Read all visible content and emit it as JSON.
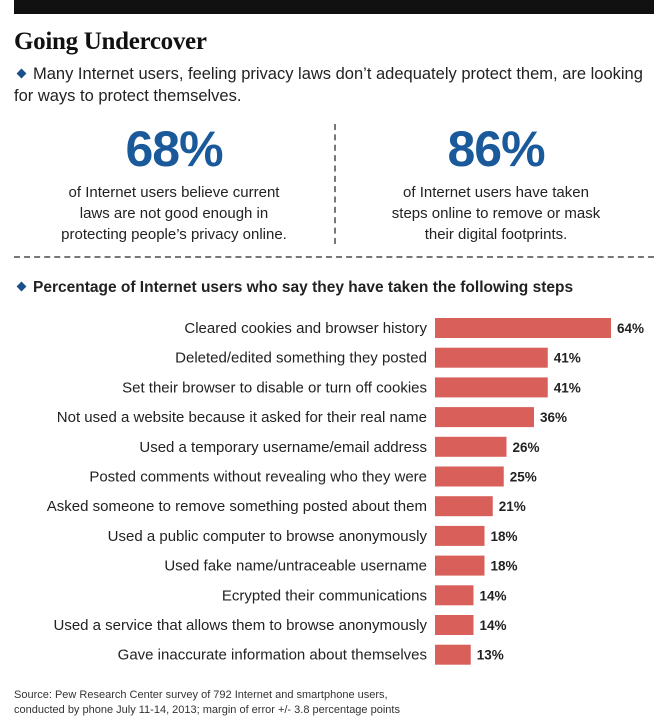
{
  "header": {
    "title": "Going Undercover",
    "subtitle": "Many Internet users, feeling privacy laws don’t adequately protect them, are looking for ways to protect themselves."
  },
  "stats": [
    {
      "value": "68%",
      "lines": [
        "of Internet users believe current",
        "laws are not good enough in",
        "protecting people’s privacy online."
      ]
    },
    {
      "value": "86%",
      "lines": [
        "of Internet users have taken",
        "steps online to remove or mask",
        "their digital footprints."
      ]
    }
  ],
  "chart_heading": "Percentage of Internet users who say they have taken the following steps",
  "colors": {
    "bar": "#d9605a",
    "accent": "#1a5a9a",
    "diamond": "#1a4f8a"
  },
  "chart_data": {
    "type": "bar",
    "orientation": "horizontal",
    "title": "Percentage of Internet users who say they have taken the following steps",
    "categories": [
      "Cleared cookies and browser history",
      "Deleted/edited something they posted",
      "Set their browser to disable or turn off cookies",
      "Not used a website because it asked for their real name",
      "Used a temporary username/email address",
      "Posted comments without revealing who they were",
      "Asked someone to remove something posted about them",
      "Used a public computer to browse anonymously",
      "Used fake name/untraceable username",
      "Ecrypted their communications",
      "Used a service that allows them to browse anonymously",
      "Gave inaccurate information about themselves"
    ],
    "values": [
      64,
      41,
      41,
      36,
      26,
      25,
      21,
      18,
      18,
      14,
      14,
      13
    ],
    "value_labels": [
      "64%",
      "41%",
      "41%",
      "36%",
      "26%",
      "25%",
      "21%",
      "18%",
      "18%",
      "14%",
      "14%",
      "13%"
    ],
    "unit": "%",
    "grid": false
  },
  "source": {
    "line1": "Source: Pew Research Center survey of 792 Internet and smartphone users,",
    "line2": "conducted by phone July 11-14, 2013; margin of error +/- 3.8 percentage points"
  }
}
